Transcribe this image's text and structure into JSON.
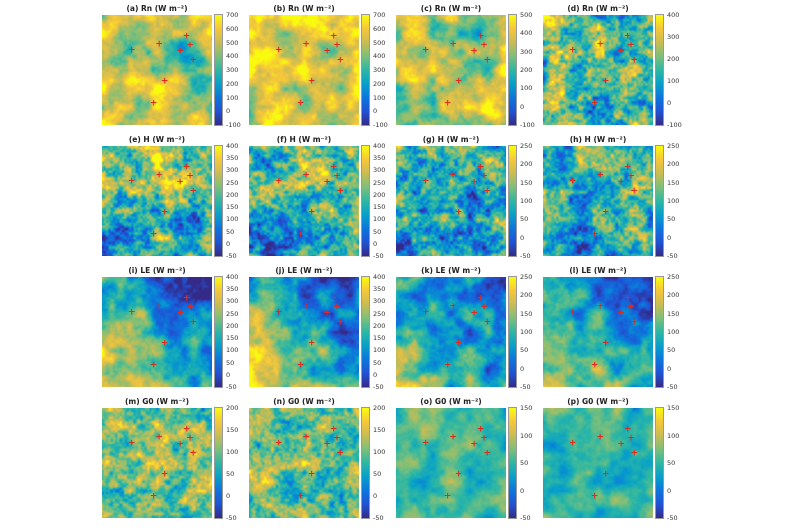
{
  "page": {
    "background": "#ffffff"
  },
  "chart_data": {
    "type": "heatmap",
    "layout": "4x4-panel-grid",
    "unit_label": "W m⁻²",
    "marker_glyph": "+",
    "marker_color": "#e02a1c",
    "colormap": [
      "#352a87",
      "#2053d4",
      "#0d75dc",
      "#07a0c9",
      "#2db7a4",
      "#7dbf7a",
      "#c9bc53",
      "#f6c73a",
      "#f9fb0e"
    ],
    "station_markers": [
      [
        0.27,
        0.33
      ],
      [
        0.52,
        0.27
      ],
      [
        0.77,
        0.2
      ],
      [
        0.8,
        0.28
      ],
      [
        0.71,
        0.34
      ],
      [
        0.83,
        0.42
      ],
      [
        0.57,
        0.61
      ],
      [
        0.47,
        0.81
      ]
    ],
    "variables": [
      "Rn",
      "H",
      "LE",
      "G0"
    ],
    "panels": [
      {
        "id": "a",
        "variable": "Rn",
        "title": "(a) Rn (W m⁻²)",
        "cmax": 700,
        "cmin": -100,
        "ticks": [
          700,
          600,
          500,
          400,
          300,
          200,
          100,
          0,
          -100
        ],
        "render": {
          "seed": 101,
          "bias": 0.8,
          "amp": 0.5,
          "spots": [
            {
              "x": 0.72,
              "y": 0.28,
              "r": 0.34,
              "dv": -0.28
            },
            {
              "x": 0.9,
              "y": 0.55,
              "r": 0.25,
              "dv": -0.18
            }
          ]
        }
      },
      {
        "id": "b",
        "variable": "Rn",
        "title": "(b) Rn (W m⁻²)",
        "cmax": 700,
        "cmin": -100,
        "ticks": [
          700,
          600,
          500,
          400,
          300,
          200,
          100,
          0,
          -100
        ],
        "render": {
          "seed": 102,
          "bias": 0.83,
          "amp": 0.45,
          "spots": [
            {
              "x": 0.78,
              "y": 0.22,
              "r": 0.3,
              "dv": -0.22
            }
          ]
        }
      },
      {
        "id": "c",
        "variable": "Rn",
        "title": "(c) Rn (W m⁻²)",
        "cmax": 500,
        "cmin": -100,
        "ticks": [
          500,
          400,
          300,
          200,
          100,
          0,
          -100
        ],
        "render": {
          "seed": 103,
          "bias": 0.77,
          "amp": 0.5,
          "spots": [
            {
              "x": 0.72,
              "y": 0.3,
              "r": 0.32,
              "dv": -0.26
            },
            {
              "x": 0.25,
              "y": 0.8,
              "r": 0.3,
              "dv": -0.1
            }
          ]
        }
      },
      {
        "id": "d",
        "variable": "Rn",
        "title": "(d) Rn (W m⁻²)",
        "cmax": 400,
        "cmin": -100,
        "ticks": [
          400,
          300,
          200,
          100,
          0,
          -100
        ],
        "render": {
          "seed": 104,
          "bias": 0.55,
          "amp": 0.75,
          "rough": true,
          "spots": [
            {
              "x": 0.15,
              "y": 0.15,
              "r": 0.3,
              "dv": 0.12
            }
          ]
        }
      },
      {
        "id": "e",
        "variable": "H",
        "title": "(e) H (W m⁻²)",
        "cmax": 400,
        "cmin": -50,
        "ticks": [
          400,
          350,
          300,
          250,
          200,
          150,
          100,
          50,
          0,
          -50
        ],
        "render": {
          "seed": 105,
          "bias": 0.57,
          "amp": 0.75,
          "rough": true,
          "spots": [
            {
              "x": 0.15,
              "y": 0.85,
              "r": 0.4,
              "dv": -0.42
            },
            {
              "x": 0.78,
              "y": 0.85,
              "r": 0.32,
              "dv": -0.3
            },
            {
              "x": 0.5,
              "y": 0.12,
              "r": 0.35,
              "dv": 0.18
            }
          ]
        }
      },
      {
        "id": "f",
        "variable": "H",
        "title": "(f) H (W m⁻²)",
        "cmax": 400,
        "cmin": -50,
        "ticks": [
          400,
          350,
          300,
          250,
          200,
          150,
          100,
          50,
          0,
          -50
        ],
        "render": {
          "seed": 106,
          "bias": 0.57,
          "amp": 0.75,
          "rough": true,
          "spots": [
            {
              "x": 0.18,
              "y": 0.88,
              "r": 0.4,
              "dv": -0.42
            },
            {
              "x": 0.75,
              "y": 0.82,
              "r": 0.3,
              "dv": -0.28
            },
            {
              "x": 0.45,
              "y": 0.15,
              "r": 0.3,
              "dv": 0.18
            }
          ]
        }
      },
      {
        "id": "g",
        "variable": "H",
        "title": "(g) H (W m⁻²)",
        "cmax": 250,
        "cmin": -50,
        "ticks": [
          250,
          200,
          150,
          100,
          50,
          0,
          -50
        ],
        "render": {
          "seed": 107,
          "bias": 0.47,
          "amp": 0.75,
          "rough": true,
          "spots": [
            {
              "x": 0.2,
              "y": 0.8,
              "r": 0.38,
              "dv": -0.32
            },
            {
              "x": 0.7,
              "y": 0.75,
              "r": 0.3,
              "dv": -0.22
            },
            {
              "x": 0.3,
              "y": 0.15,
              "r": 0.3,
              "dv": 0.15
            }
          ]
        }
      },
      {
        "id": "h",
        "variable": "H",
        "title": "(h) H (W m⁻²)",
        "cmax": 250,
        "cmin": -50,
        "ticks": [
          250,
          200,
          150,
          100,
          50,
          0,
          -50
        ],
        "render": {
          "seed": 108,
          "bias": 0.5,
          "amp": 0.7,
          "rough": true,
          "spots": [
            {
              "x": 0.3,
              "y": 0.85,
              "r": 0.33,
              "dv": -0.28
            },
            {
              "x": 0.85,
              "y": 0.2,
              "r": 0.25,
              "dv": 0.12
            }
          ]
        }
      },
      {
        "id": "i",
        "variable": "LE",
        "title": "(i) LE (W m⁻²)",
        "cmax": 400,
        "cmin": -50,
        "ticks": [
          400,
          350,
          300,
          250,
          200,
          150,
          100,
          50,
          0,
          -50
        ],
        "render": {
          "seed": 109,
          "bias": 0.46,
          "amp": 0.5,
          "gx": -0.42,
          "gy": 0.5,
          "spots": [
            {
              "x": 0.8,
              "y": 0.15,
              "r": 0.3,
              "dv": -0.12
            }
          ]
        }
      },
      {
        "id": "j",
        "variable": "LE",
        "title": "(j) LE (W m⁻²)",
        "cmax": 400,
        "cmin": -50,
        "ticks": [
          400,
          350,
          300,
          250,
          200,
          150,
          100,
          50,
          0,
          -50
        ],
        "render": {
          "seed": 110,
          "bias": 0.46,
          "amp": 0.5,
          "gx": -0.42,
          "gy": 0.5,
          "spots": []
        }
      },
      {
        "id": "k",
        "variable": "LE",
        "title": "(k) LE (W m⁻²)",
        "cmax": 250,
        "cmin": -50,
        "ticks": [
          250,
          200,
          150,
          100,
          50,
          0,
          -50
        ],
        "render": {
          "seed": 111,
          "bias": 0.42,
          "amp": 0.5,
          "gx": -0.3,
          "gy": 0.34,
          "spots": []
        }
      },
      {
        "id": "l",
        "variable": "LE",
        "title": "(l) LE (W m⁻²)",
        "cmax": 250,
        "cmin": -50,
        "ticks": [
          250,
          200,
          150,
          100,
          50,
          0,
          -50
        ],
        "render": {
          "seed": 112,
          "bias": 0.42,
          "amp": 0.45,
          "gx": -0.3,
          "gy": 0.34,
          "spots": []
        }
      },
      {
        "id": "m",
        "variable": "G0",
        "title": "(m) G0 (W m⁻²)",
        "cmax": 200,
        "cmin": -50,
        "ticks": [
          200,
          150,
          100,
          50,
          0,
          -50
        ],
        "render": {
          "seed": 113,
          "bias": 0.6,
          "amp": 0.6,
          "rough": true,
          "spots": [
            {
              "x": 0.8,
              "y": 0.3,
              "r": 0.3,
              "dv": 0.1
            }
          ]
        }
      },
      {
        "id": "n",
        "variable": "G0",
        "title": "(n) G0 (W m⁻²)",
        "cmax": 200,
        "cmin": -50,
        "ticks": [
          200,
          150,
          100,
          50,
          0,
          -50
        ],
        "render": {
          "seed": 114,
          "bias": 0.6,
          "amp": 0.6,
          "rough": true,
          "spots": []
        }
      },
      {
        "id": "o",
        "variable": "G0",
        "title": "(o) G0 (W m⁻²)",
        "cmax": 150,
        "cmin": -50,
        "ticks": [
          150,
          100,
          50,
          0,
          -50
        ],
        "render": {
          "seed": 115,
          "bias": 0.5,
          "amp": 0.3,
          "spots": [
            {
              "x": 0.2,
              "y": 0.2,
              "r": 0.35,
              "dv": 0.08
            }
          ]
        }
      },
      {
        "id": "p",
        "variable": "G0",
        "title": "(p) G0 (W m⁻²)",
        "cmax": 150,
        "cmin": -50,
        "ticks": [
          150,
          100,
          50,
          0,
          -50
        ],
        "render": {
          "seed": 116,
          "bias": 0.5,
          "amp": 0.3,
          "spots": []
        }
      }
    ]
  }
}
